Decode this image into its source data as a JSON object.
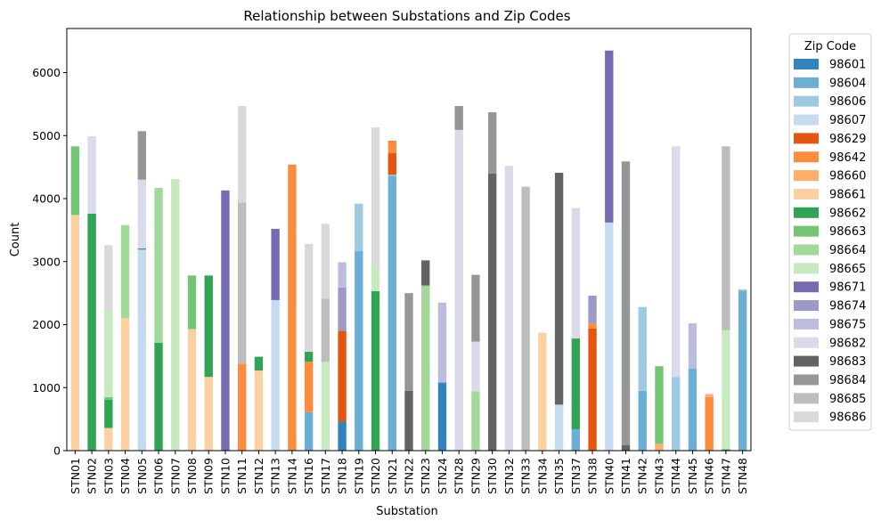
{
  "chart_data": {
    "type": "bar",
    "stacked": true,
    "title": "Relationship between Substations and Zip Codes",
    "xlabel": "Substation",
    "ylabel": "Count",
    "ylim": [
      0,
      6700
    ],
    "yticks": [
      0,
      1000,
      2000,
      3000,
      4000,
      5000,
      6000
    ],
    "grid": false,
    "legend_position": "outside-right",
    "legend_title": "Zip Code",
    "categories": [
      "STN01",
      "STN02",
      "STN03",
      "STN04",
      "STN05",
      "STN06",
      "STN07",
      "STN08",
      "STN09",
      "STN10",
      "STN11",
      "STN12",
      "STN13",
      "STN14",
      "STN16",
      "STN17",
      "STN18",
      "STN19",
      "STN20",
      "STN21",
      "STN22",
      "STN23",
      "STN24",
      "STN28",
      "STN29",
      "STN30",
      "STN32",
      "STN33",
      "STN34",
      "STN35",
      "STN37",
      "STN38",
      "STN40",
      "STN41",
      "STN42",
      "STN43",
      "STN44",
      "STN45",
      "STN46",
      "STN47",
      "STN48"
    ],
    "series": [
      {
        "name": "98601",
        "color": "#3182bd",
        "values": [
          0,
          0,
          0,
          0,
          0,
          0,
          0,
          0,
          0,
          0,
          0,
          0,
          0,
          0,
          0,
          0,
          460,
          0,
          0,
          0,
          0,
          0,
          1080,
          0,
          0,
          0,
          0,
          0,
          0,
          0,
          0,
          0,
          0,
          0,
          0,
          0,
          0,
          0,
          0,
          0,
          0
        ]
      },
      {
        "name": "98604",
        "color": "#6baed6",
        "values": [
          0,
          0,
          0,
          0,
          0,
          0,
          0,
          0,
          0,
          0,
          0,
          0,
          0,
          0,
          610,
          0,
          0,
          3170,
          0,
          4360,
          0,
          0,
          0,
          0,
          0,
          0,
          0,
          0,
          0,
          0,
          340,
          0,
          0,
          0,
          950,
          0,
          0,
          1300,
          0,
          0,
          2540
        ]
      },
      {
        "name": "98606",
        "color": "#9ecae1",
        "values": [
          0,
          0,
          0,
          0,
          0,
          0,
          0,
          0,
          0,
          0,
          0,
          0,
          0,
          0,
          0,
          0,
          0,
          750,
          0,
          20,
          0,
          0,
          0,
          0,
          0,
          0,
          0,
          0,
          0,
          0,
          0,
          0,
          0,
          0,
          1330,
          0,
          1170,
          0,
          0,
          0,
          20
        ]
      },
      {
        "name": "98607",
        "color": "#c6dbef",
        "values": [
          0,
          0,
          0,
          0,
          3190,
          0,
          0,
          0,
          0,
          0,
          0,
          0,
          2390,
          0,
          0,
          0,
          0,
          0,
          0,
          0,
          0,
          0,
          0,
          0,
          0,
          0,
          0,
          0,
          0,
          730,
          0,
          0,
          3620,
          0,
          0,
          0,
          0,
          0,
          0,
          0,
          0
        ]
      },
      {
        "name": "98629",
        "color": "#e6550d",
        "values": [
          0,
          0,
          0,
          0,
          0,
          0,
          0,
          0,
          0,
          0,
          0,
          0,
          0,
          0,
          0,
          0,
          1440,
          0,
          0,
          340,
          0,
          0,
          0,
          0,
          0,
          0,
          0,
          0,
          0,
          0,
          0,
          1940,
          0,
          0,
          0,
          0,
          0,
          0,
          0,
          0,
          0
        ]
      },
      {
        "name": "98642",
        "color": "#fd8d3c",
        "values": [
          0,
          0,
          0,
          0,
          0,
          0,
          0,
          0,
          0,
          0,
          1380,
          0,
          0,
          4540,
          800,
          0,
          0,
          0,
          0,
          200,
          0,
          0,
          0,
          0,
          0,
          0,
          0,
          0,
          0,
          0,
          0,
          80,
          0,
          0,
          0,
          0,
          0,
          0,
          850,
          0,
          0
        ]
      },
      {
        "name": "98660",
        "color": "#fdae6b",
        "values": [
          0,
          0,
          0,
          0,
          0,
          0,
          0,
          0,
          0,
          0,
          0,
          0,
          0,
          0,
          0,
          0,
          0,
          0,
          0,
          0,
          0,
          0,
          0,
          0,
          0,
          0,
          0,
          0,
          10,
          0,
          0,
          0,
          0,
          0,
          0,
          110,
          0,
          0,
          40,
          0,
          0
        ]
      },
      {
        "name": "98661",
        "color": "#fdd0a2",
        "values": [
          3740,
          0,
          360,
          2100,
          0,
          0,
          0,
          1930,
          1170,
          0,
          0,
          1270,
          0,
          0,
          0,
          0,
          0,
          0,
          0,
          0,
          0,
          0,
          0,
          0,
          0,
          0,
          0,
          0,
          1860,
          0,
          0,
          0,
          0,
          0,
          0,
          0,
          0,
          0,
          0,
          0,
          0
        ]
      },
      {
        "name": "98662",
        "color": "#31a354",
        "values": [
          0,
          3760,
          450,
          0,
          20,
          1710,
          0,
          0,
          1610,
          0,
          0,
          220,
          0,
          0,
          160,
          0,
          0,
          0,
          2530,
          0,
          0,
          0,
          0,
          0,
          0,
          0,
          0,
          0,
          0,
          0,
          1440,
          0,
          0,
          0,
          0,
          0,
          0,
          0,
          0,
          20,
          0
        ]
      },
      {
        "name": "98663",
        "color": "#74c476",
        "values": [
          1090,
          0,
          40,
          0,
          0,
          0,
          0,
          850,
          0,
          0,
          0,
          0,
          0,
          0,
          0,
          0,
          0,
          0,
          0,
          0,
          0,
          0,
          0,
          0,
          0,
          0,
          0,
          0,
          0,
          0,
          0,
          0,
          0,
          0,
          0,
          1230,
          0,
          0,
          0,
          0,
          0
        ]
      },
      {
        "name": "98664",
        "color": "#a1d99b",
        "values": [
          0,
          0,
          0,
          1480,
          0,
          2460,
          0,
          0,
          0,
          0,
          0,
          0,
          0,
          0,
          0,
          0,
          0,
          0,
          0,
          0,
          0,
          2620,
          0,
          0,
          940,
          0,
          0,
          0,
          0,
          0,
          0,
          0,
          0,
          0,
          0,
          0,
          0,
          0,
          0,
          0,
          0
        ]
      },
      {
        "name": "98665",
        "color": "#c7e9c0",
        "values": [
          0,
          0,
          1380,
          0,
          0,
          0,
          4310,
          0,
          0,
          0,
          0,
          0,
          0,
          0,
          0,
          1410,
          0,
          0,
          420,
          0,
          0,
          0,
          0,
          0,
          0,
          0,
          0,
          0,
          0,
          0,
          0,
          0,
          0,
          0,
          0,
          0,
          0,
          0,
          0,
          1890,
          0
        ]
      },
      {
        "name": "98671",
        "color": "#756bb1",
        "values": [
          0,
          0,
          0,
          0,
          0,
          0,
          0,
          0,
          0,
          4130,
          0,
          0,
          1130,
          0,
          0,
          0,
          0,
          0,
          0,
          0,
          0,
          0,
          0,
          0,
          0,
          0,
          0,
          0,
          0,
          0,
          0,
          0,
          2730,
          0,
          0,
          0,
          0,
          0,
          0,
          0,
          0
        ]
      },
      {
        "name": "98674",
        "color": "#9e9ac8",
        "values": [
          0,
          0,
          0,
          0,
          0,
          0,
          0,
          0,
          0,
          0,
          0,
          0,
          0,
          0,
          0,
          0,
          690,
          0,
          0,
          0,
          0,
          0,
          0,
          0,
          0,
          0,
          0,
          0,
          0,
          0,
          0,
          440,
          0,
          0,
          0,
          0,
          0,
          0,
          0,
          0,
          0
        ]
      },
      {
        "name": "98675",
        "color": "#bcbddc",
        "values": [
          0,
          0,
          0,
          0,
          0,
          0,
          0,
          0,
          0,
          0,
          0,
          0,
          0,
          0,
          0,
          0,
          400,
          0,
          0,
          0,
          0,
          0,
          1270,
          0,
          0,
          0,
          0,
          0,
          0,
          0,
          0,
          0,
          0,
          0,
          0,
          0,
          0,
          720,
          0,
          0,
          0
        ]
      },
      {
        "name": "98682",
        "color": "#dadaeb",
        "values": [
          0,
          1230,
          0,
          0,
          1090,
          0,
          0,
          0,
          0,
          0,
          0,
          0,
          0,
          0,
          0,
          0,
          0,
          0,
          0,
          0,
          0,
          0,
          0,
          5090,
          790,
          0,
          4520,
          0,
          0,
          0,
          2070,
          0,
          0,
          0,
          0,
          0,
          3660,
          0,
          20,
          0,
          0
        ]
      },
      {
        "name": "98683",
        "color": "#636363",
        "values": [
          0,
          0,
          0,
          0,
          0,
          0,
          0,
          0,
          0,
          0,
          0,
          0,
          0,
          0,
          0,
          0,
          0,
          0,
          0,
          0,
          950,
          400,
          0,
          0,
          0,
          4400,
          0,
          0,
          0,
          3680,
          0,
          0,
          0,
          90,
          0,
          0,
          0,
          0,
          0,
          0,
          0
        ]
      },
      {
        "name": "98684",
        "color": "#969696",
        "values": [
          0,
          0,
          0,
          0,
          770,
          0,
          0,
          0,
          0,
          0,
          0,
          0,
          0,
          0,
          0,
          0,
          0,
          0,
          0,
          0,
          1550,
          0,
          0,
          380,
          1060,
          970,
          0,
          0,
          0,
          0,
          0,
          0,
          0,
          4500,
          0,
          0,
          0,
          0,
          0,
          0,
          0
        ]
      },
      {
        "name": "98685",
        "color": "#bdbdbd",
        "values": [
          0,
          0,
          0,
          0,
          0,
          0,
          0,
          0,
          0,
          0,
          2560,
          0,
          0,
          0,
          0,
          1000,
          0,
          0,
          0,
          0,
          0,
          0,
          0,
          0,
          0,
          0,
          0,
          4190,
          0,
          0,
          0,
          0,
          0,
          0,
          0,
          0,
          0,
          0,
          0,
          2920,
          0
        ]
      },
      {
        "name": "98686",
        "color": "#d9d9d9",
        "values": [
          0,
          0,
          1030,
          0,
          0,
          0,
          0,
          0,
          0,
          0,
          1530,
          0,
          0,
          0,
          1710,
          1190,
          0,
          0,
          2180,
          0,
          0,
          0,
          0,
          0,
          0,
          0,
          0,
          0,
          0,
          0,
          0,
          0,
          0,
          0,
          0,
          0,
          0,
          0,
          0,
          0,
          0
        ]
      }
    ]
  }
}
